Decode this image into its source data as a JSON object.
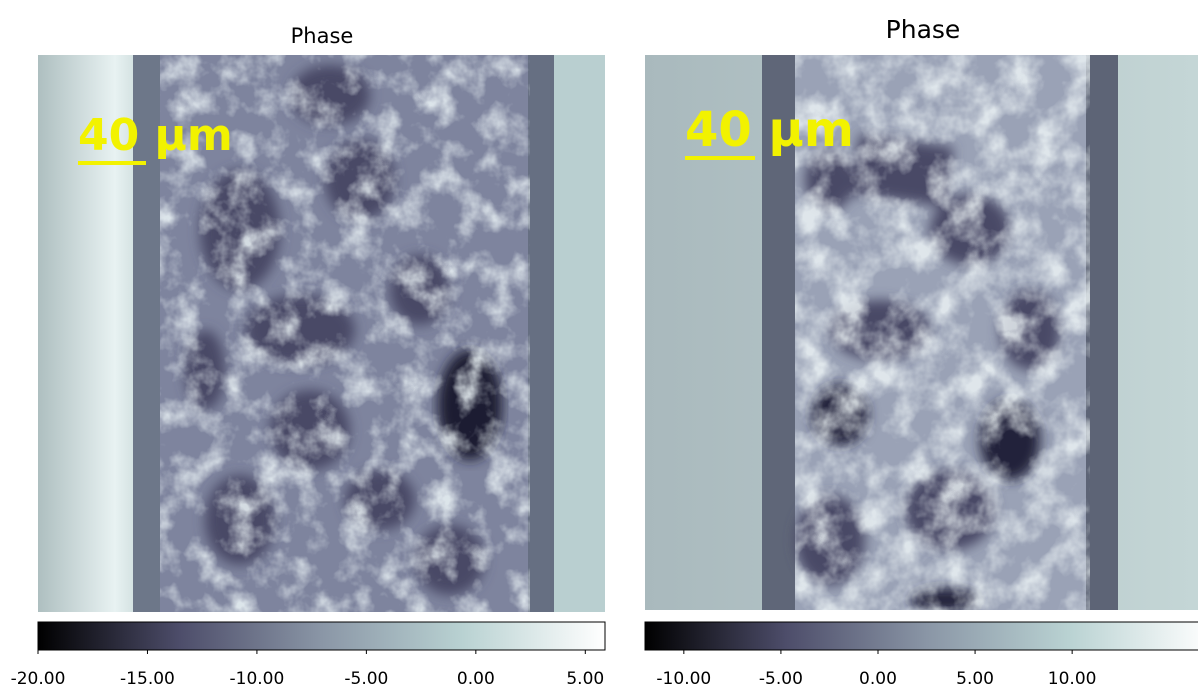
{
  "chart_data": [
    {
      "type": "image",
      "title": "Phase",
      "annotation": "40 µm",
      "colormap": [
        "#000000",
        "#4d4d6a",
        "#8a96a6",
        "#b9d2d2",
        "#ffffff"
      ],
      "clim": [
        -20,
        5.9
      ],
      "cticks": [
        {
          "value": -20,
          "label": "-20.00"
        },
        {
          "value": -15,
          "label": "-15.00"
        },
        {
          "value": -10,
          "label": "-10.00"
        },
        {
          "value": -5,
          "label": "-5.00"
        },
        {
          "value": 0,
          "label": "0.00"
        },
        {
          "value": 5,
          "label": "5.00"
        }
      ]
    },
    {
      "type": "image",
      "title": "Phase",
      "annotation": "40 µm",
      "colormap": [
        "#000000",
        "#4d4d6a",
        "#8a96a6",
        "#b9d2d2",
        "#ffffff"
      ],
      "clim": [
        -12,
        17.1
      ],
      "cticks": [
        {
          "value": -10,
          "label": "-10.00"
        },
        {
          "value": -5,
          "label": "-5.00"
        },
        {
          "value": 0,
          "label": "0.00"
        },
        {
          "value": 5,
          "label": "5.00"
        },
        {
          "value": 10,
          "label": "10.00"
        }
      ]
    }
  ]
}
